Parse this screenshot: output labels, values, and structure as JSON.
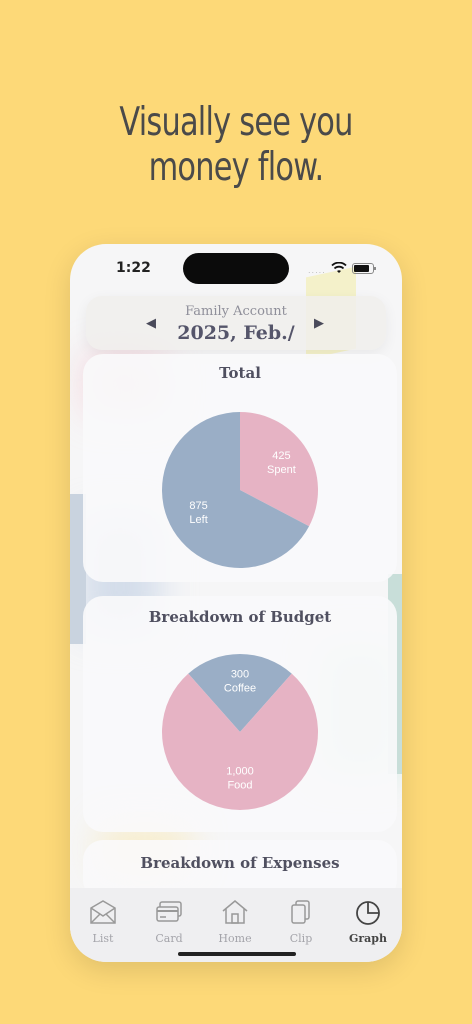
{
  "headline": {
    "line1": "Visually see you",
    "line2": "money flow."
  },
  "status_bar": {
    "time": "1:22",
    "signal": "....."
  },
  "month_selector": {
    "account": "Family Account",
    "period": "2025, Feb./",
    "prev_glyph": "◀",
    "next_glyph": "▶"
  },
  "colors": {
    "background": "#FDD978",
    "pink": "#E6B3C4",
    "blue": "#9AAEC6"
  },
  "cards": {
    "total": {
      "title": "Total"
    },
    "budget": {
      "title": "Breakdown of Budget"
    },
    "expenses": {
      "title": "Breakdown of Expenses"
    }
  },
  "tabs": [
    {
      "label": "List",
      "icon": "envelope-icon"
    },
    {
      "label": "Card",
      "icon": "credit-card-icon"
    },
    {
      "label": "Home",
      "icon": "house-icon"
    },
    {
      "label": "Clip",
      "icon": "clipboard-icon"
    },
    {
      "label": "Graph",
      "icon": "pie-chart-icon",
      "selected": true
    }
  ],
  "chart_data": [
    {
      "type": "pie",
      "title": "Total",
      "slices": [
        {
          "label": "Spent",
          "value": 425,
          "value_text": "425",
          "color": "#E6B3C4"
        },
        {
          "label": "Left",
          "value": 875,
          "value_text": "875",
          "color": "#9AAEC6"
        }
      ]
    },
    {
      "type": "pie",
      "title": "Breakdown of Budget",
      "slices": [
        {
          "label": "Coffee",
          "value": 300,
          "value_text": "300",
          "color": "#9AAEC6"
        },
        {
          "label": "Food",
          "value": 1000,
          "value_text": "1,000",
          "color": "#E6B3C4"
        }
      ]
    }
  ]
}
